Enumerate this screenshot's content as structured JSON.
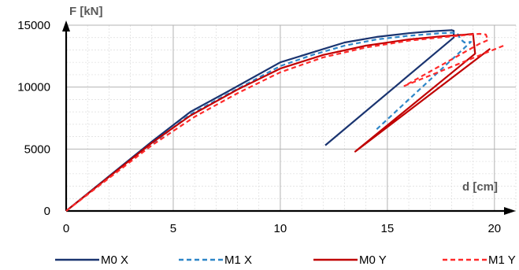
{
  "chart_data": {
    "type": "line",
    "title": "",
    "xlabel": "d [cm]",
    "ylabel": "F [kN]",
    "xlim": [
      0,
      21
    ],
    "ylim": [
      0,
      15000
    ],
    "x_ticks": [
      0,
      5,
      10,
      15,
      20
    ],
    "y_ticks": [
      0,
      5000,
      10000,
      15000
    ],
    "x_tick_labels": [
      "0",
      "5",
      "10",
      "15",
      "20"
    ],
    "y_tick_labels": [
      "0",
      "5000",
      "10000",
      "15000"
    ],
    "grid": true,
    "minor_grid": true,
    "legend_position": "bottom",
    "series": [
      {
        "name": "M0 X",
        "color": "#1a3470",
        "dash": "solid",
        "points": [
          [
            0,
            0
          ],
          [
            2,
            2800
          ],
          [
            4,
            5600
          ],
          [
            5.8,
            8000
          ],
          [
            7.5,
            9600
          ],
          [
            10,
            12000
          ],
          [
            11.5,
            12800
          ],
          [
            13,
            13600
          ],
          [
            14.5,
            14050
          ],
          [
            16,
            14350
          ],
          [
            17,
            14500
          ],
          [
            18,
            14600
          ],
          [
            18.1,
            14550
          ],
          [
            18.1,
            14000
          ],
          [
            12.1,
            5300
          ]
        ]
      },
      {
        "name": "M1 X",
        "color": "#2e86c8",
        "dash": "dashed",
        "points": [
          [
            0,
            0
          ],
          [
            2,
            2750
          ],
          [
            4,
            5400
          ],
          [
            5.8,
            7800
          ],
          [
            7.5,
            9400
          ],
          [
            10,
            11700
          ],
          [
            11.5,
            12600
          ],
          [
            13,
            13350
          ],
          [
            14.5,
            13850
          ],
          [
            16,
            14150
          ],
          [
            17.5,
            14350
          ],
          [
            18.2,
            14400
          ],
          [
            18.3,
            14250
          ],
          [
            18.4,
            13900
          ],
          [
            18.6,
            13600
          ],
          [
            18.9,
            13650
          ],
          [
            14.5,
            6600
          ]
        ]
      },
      {
        "name": "M0 Y",
        "color": "#c00000",
        "dash": "solid",
        "points": [
          [
            0,
            0
          ],
          [
            2,
            2750
          ],
          [
            4,
            5500
          ],
          [
            5.8,
            7700
          ],
          [
            8,
            9800
          ],
          [
            10,
            11500
          ],
          [
            12,
            12600
          ],
          [
            14,
            13350
          ],
          [
            16,
            13850
          ],
          [
            17.5,
            14100
          ],
          [
            18.7,
            14250
          ],
          [
            19,
            14300
          ],
          [
            19.1,
            12700
          ],
          [
            13.5,
            4800
          ],
          [
            19.8,
            13100
          ]
        ]
      },
      {
        "name": "M1 Y",
        "color": "#ff2a2a",
        "dash": "dashed",
        "points": [
          [
            0,
            0
          ],
          [
            2,
            2650
          ],
          [
            4,
            5300
          ],
          [
            6,
            7600
          ],
          [
            8,
            9500
          ],
          [
            10,
            11200
          ],
          [
            12,
            12400
          ],
          [
            14,
            13200
          ],
          [
            16,
            13750
          ],
          [
            18,
            14100
          ],
          [
            19.3,
            14300
          ],
          [
            19.6,
            14250
          ],
          [
            19.7,
            13800
          ],
          [
            19.3,
            13500
          ],
          [
            15.8,
            10100
          ],
          [
            20.5,
            13400
          ]
        ]
      }
    ]
  }
}
